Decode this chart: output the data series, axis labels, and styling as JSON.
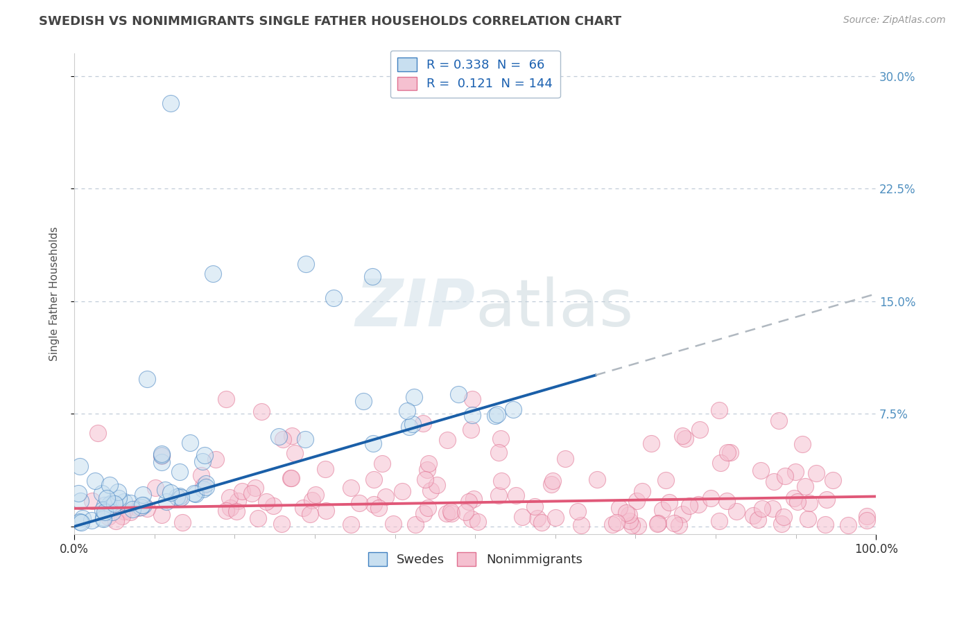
{
  "title": "SWEDISH VS NONIMMIGRANTS SINGLE FATHER HOUSEHOLDS CORRELATION CHART",
  "source": "Source: ZipAtlas.com",
  "ylabel": "Single Father Households",
  "watermark": "ZIPatlas",
  "legend": {
    "swedes_R": "0.338",
    "swedes_N": "66",
    "nonimm_R": "0.121",
    "nonimm_N": "144"
  },
  "yticks": [
    0.0,
    0.075,
    0.15,
    0.225,
    0.3
  ],
  "ytick_labels": [
    "",
    "7.5%",
    "15.0%",
    "22.5%",
    "30.0%"
  ],
  "xlim": [
    0.0,
    1.0
  ],
  "ylim": [
    -0.005,
    0.315
  ],
  "blue_fill": "#c8dff0",
  "blue_edge": "#4080c0",
  "blue_line": "#1a5fa8",
  "pink_fill": "#f5c0d0",
  "pink_edge": "#e07090",
  "pink_line": "#e05878",
  "dashed_color": "#b0b8c0",
  "grid_color": "#c0ccd8",
  "bg_color": "#ffffff",
  "title_color": "#444444",
  "source_color": "#999999",
  "yaxis_color": "#5090c0"
}
